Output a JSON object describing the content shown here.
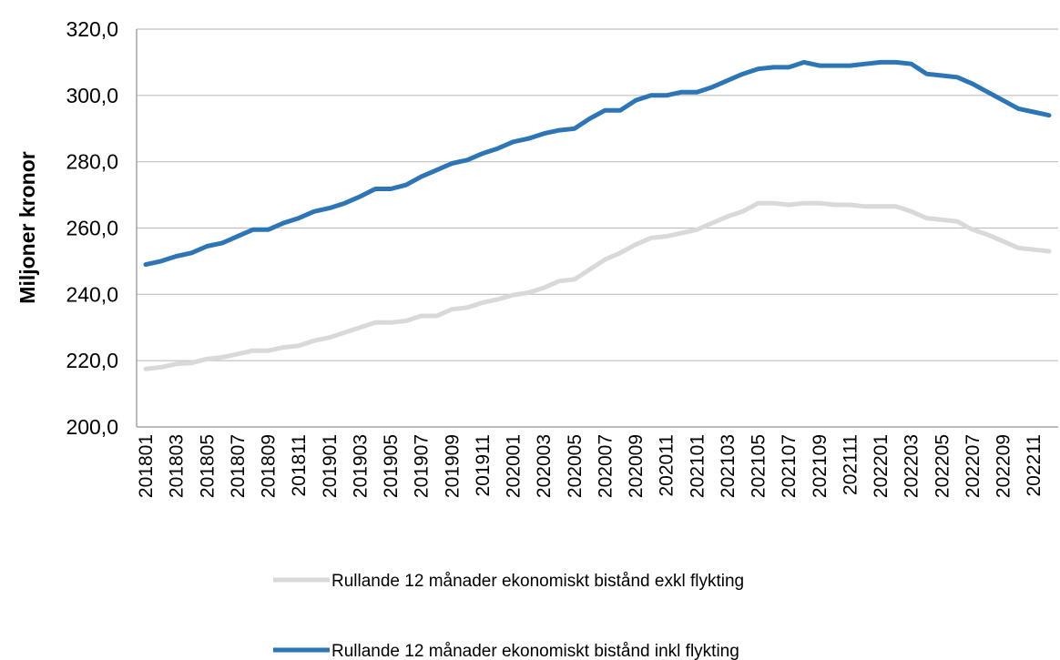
{
  "chart_data": {
    "type": "line",
    "ylabel": "Miljoner kronor",
    "xlabel": "",
    "ylim": [
      200,
      320
    ],
    "yticks": [
      "200,0",
      "220,0",
      "240,0",
      "260,0",
      "280,0",
      "300,0",
      "320,0"
    ],
    "grid": true,
    "legend_position": "bottom",
    "x": [
      "201801",
      "201802",
      "201803",
      "201804",
      "201805",
      "201806",
      "201807",
      "201808",
      "201809",
      "201810",
      "201811",
      "201812",
      "201901",
      "201902",
      "201903",
      "201904",
      "201905",
      "201906",
      "201907",
      "201908",
      "201909",
      "201910",
      "201911",
      "201912",
      "202001",
      "202002",
      "202003",
      "202004",
      "202005",
      "202006",
      "202007",
      "202008",
      "202009",
      "202010",
      "202011",
      "202012",
      "202101",
      "202102",
      "202103",
      "202104",
      "202105",
      "202106",
      "202107",
      "202108",
      "202109",
      "202110",
      "202111",
      "202112",
      "202201",
      "202202",
      "202203",
      "202204",
      "202205",
      "202206",
      "202207",
      "202208",
      "202209",
      "202210",
      "202211",
      "202212"
    ],
    "xtick_labels": [
      "201801",
      "201803",
      "201805",
      "201807",
      "201809",
      "201811",
      "201901",
      "201903",
      "201905",
      "201907",
      "201909",
      "201911",
      "202001",
      "202003",
      "202005",
      "202007",
      "202009",
      "202011",
      "202101",
      "202103",
      "202105",
      "202107",
      "202109",
      "202111",
      "202201",
      "202203",
      "202205",
      "202207",
      "202209",
      "202211"
    ],
    "series": [
      {
        "name": "Rullande 12 månader ekonomiskt bistånd exkl flykting",
        "color": "#d9d9d9",
        "values": [
          217.5,
          218.0,
          219.0,
          219.3,
          220.5,
          221.0,
          222.0,
          223.0,
          223.0,
          224.0,
          224.5,
          226.0,
          227.0,
          228.5,
          230.0,
          231.5,
          231.5,
          232.0,
          233.5,
          233.5,
          235.5,
          236.0,
          237.5,
          238.5,
          239.8,
          240.5,
          242.0,
          244.0,
          244.5,
          247.5,
          250.5,
          252.5,
          255.0,
          257.0,
          257.5,
          258.5,
          259.5,
          261.5,
          263.5,
          265.0,
          267.5,
          267.5,
          267.0,
          267.5,
          267.5,
          267.0,
          267.0,
          266.5,
          266.5,
          266.5,
          265.0,
          263.0,
          262.5,
          262.0,
          259.5,
          258.0,
          256.0,
          254.0,
          253.5,
          253.0
        ]
      },
      {
        "name": "Rullande 12 månader ekonomiskt bistånd inkl flykting",
        "color": "#2e75b6",
        "values": [
          249.0,
          250.0,
          251.5,
          252.5,
          254.5,
          255.5,
          257.5,
          259.5,
          259.5,
          261.5,
          263.0,
          265.0,
          266.0,
          267.5,
          269.5,
          271.8,
          271.8,
          273.0,
          275.5,
          277.5,
          279.5,
          280.5,
          282.5,
          284.0,
          286.0,
          287.0,
          288.5,
          289.5,
          290.0,
          293.0,
          295.5,
          295.5,
          298.5,
          300.0,
          300.0,
          301.0,
          301.0,
          302.5,
          304.5,
          306.5,
          308.0,
          308.5,
          308.5,
          310.0,
          309.0,
          309.0,
          309.0,
          309.5,
          310.0,
          310.0,
          309.5,
          306.5,
          306.0,
          305.5,
          303.5,
          301.0,
          298.5,
          296.0,
          295.0,
          294.0
        ]
      }
    ]
  }
}
